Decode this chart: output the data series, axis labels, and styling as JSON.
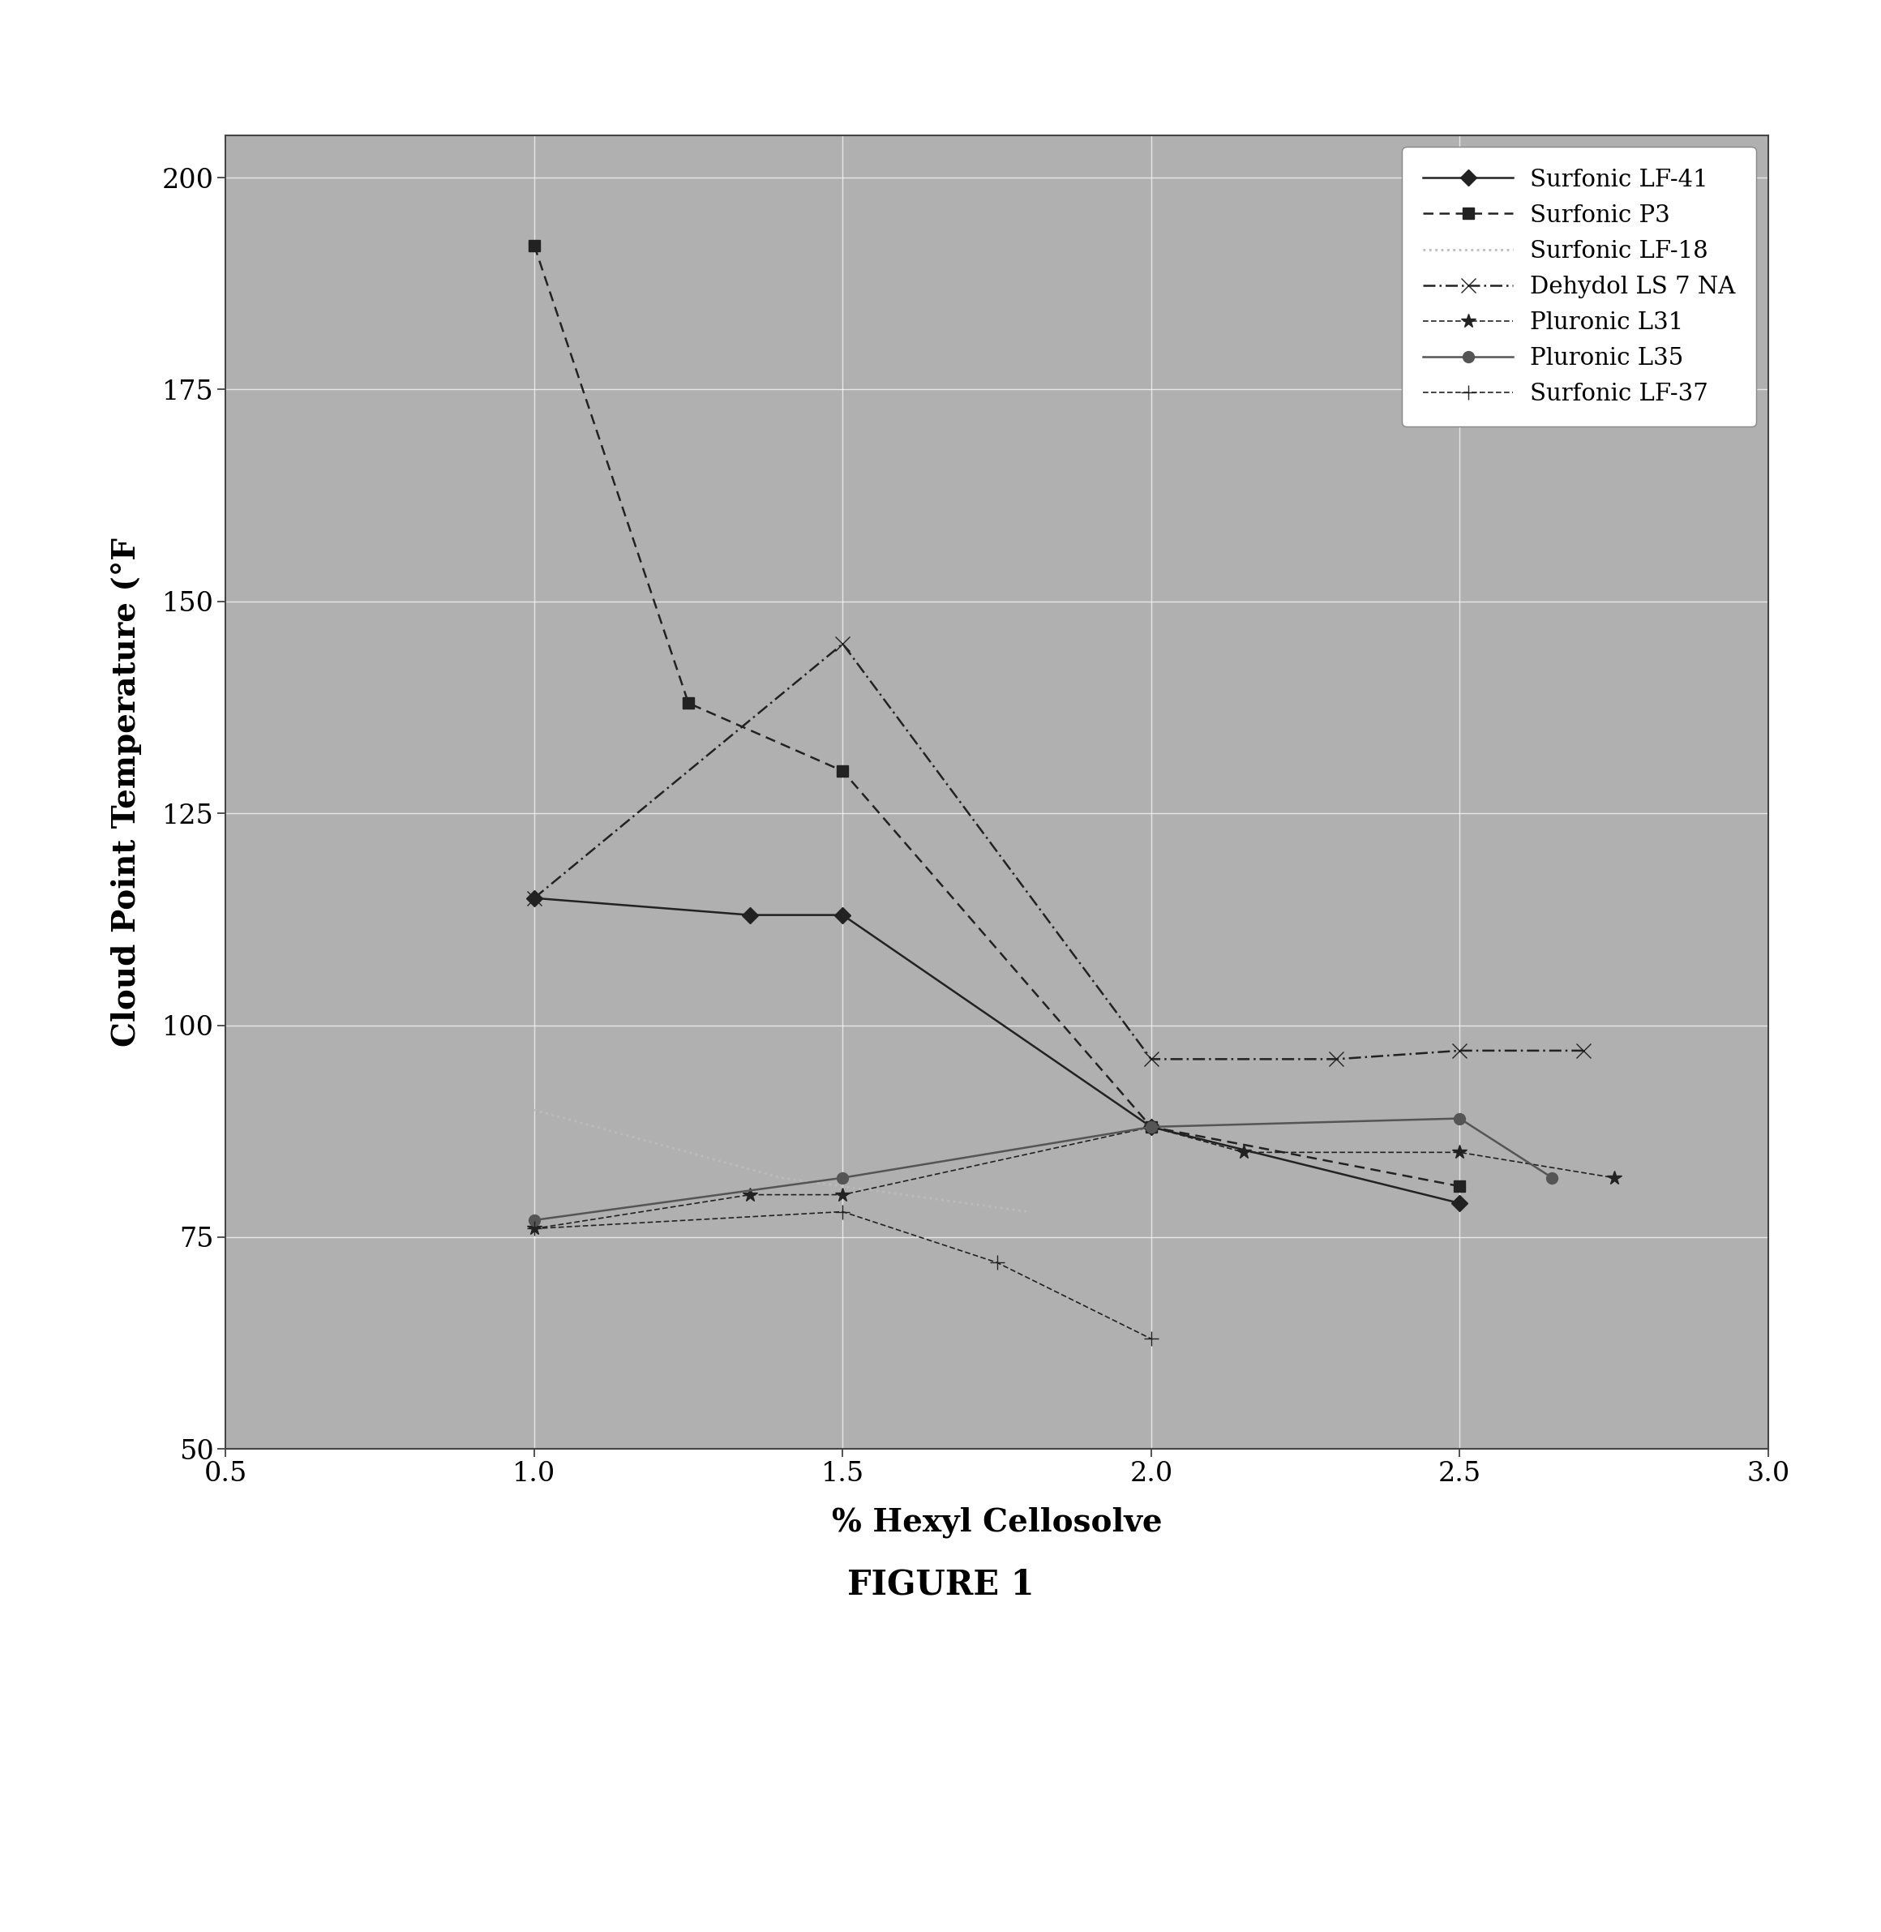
{
  "title": "FIGURE 1",
  "xlabel": "% Hexyl Cellosolve",
  "ylabel": "Cloud Point Temperature (°F",
  "xlim": [
    0.5,
    3.0
  ],
  "ylim": [
    50,
    205
  ],
  "xticks": [
    0.5,
    1.0,
    1.5,
    2.0,
    2.5,
    3.0
  ],
  "yticks": [
    50,
    75,
    100,
    125,
    150,
    175,
    200
  ],
  "series": [
    {
      "label": "Surfonic LF-41",
      "x": [
        1.0,
        1.35,
        1.5,
        2.0,
        2.5
      ],
      "y": [
        115,
        113,
        113,
        88,
        79
      ],
      "color": "#222222",
      "linestyle": "-",
      "marker": "D",
      "markersize": 10,
      "linewidth": 1.8
    },
    {
      "label": "Surfonic P3",
      "x": [
        1.0,
        1.25,
        1.5,
        2.0,
        2.5
      ],
      "y": [
        192,
        138,
        130,
        88,
        81
      ],
      "color": "#222222",
      "linestyle": "--",
      "marker": "s",
      "markersize": 10,
      "linewidth": 1.8
    },
    {
      "label": "Surfonic LF-18",
      "x": [
        1.0,
        1.4,
        1.8
      ],
      "y": [
        90,
        82,
        78
      ],
      "color": "#bbbbbb",
      "linestyle": ":",
      "marker": "none",
      "markersize": 0,
      "linewidth": 2.0
    },
    {
      "label": "Dehydol LS 7 NA",
      "x": [
        1.0,
        1.5,
        2.0,
        2.3,
        2.5,
        2.7
      ],
      "y": [
        115,
        145,
        96,
        96,
        97,
        97
      ],
      "color": "#222222",
      "linestyle": "-.",
      "marker": "x",
      "markersize": 13,
      "linewidth": 1.8
    },
    {
      "label": "Pluronic L31",
      "x": [
        1.0,
        1.35,
        1.5,
        2.0,
        2.15,
        2.5,
        2.75
      ],
      "y": [
        76,
        80,
        80,
        88,
        85,
        85,
        82
      ],
      "color": "#222222",
      "linestyle": "-",
      "marker": "*",
      "markersize": 13,
      "linewidth": 1.2
    },
    {
      "label": "Pluronic L35",
      "x": [
        1.0,
        1.5,
        2.0,
        2.5,
        2.65
      ],
      "y": [
        77,
        82,
        88,
        89,
        82
      ],
      "color": "#555555",
      "linestyle": "-",
      "marker": "o",
      "markersize": 10,
      "linewidth": 1.8
    },
    {
      "label": "Surfonic LF-37",
      "x": [
        1.0,
        1.5,
        1.75,
        2.0
      ],
      "y": [
        76,
        78,
        72,
        63
      ],
      "color": "#222222",
      "linestyle": "--",
      "marker": "+",
      "markersize": 13,
      "linewidth": 1.2
    }
  ]
}
